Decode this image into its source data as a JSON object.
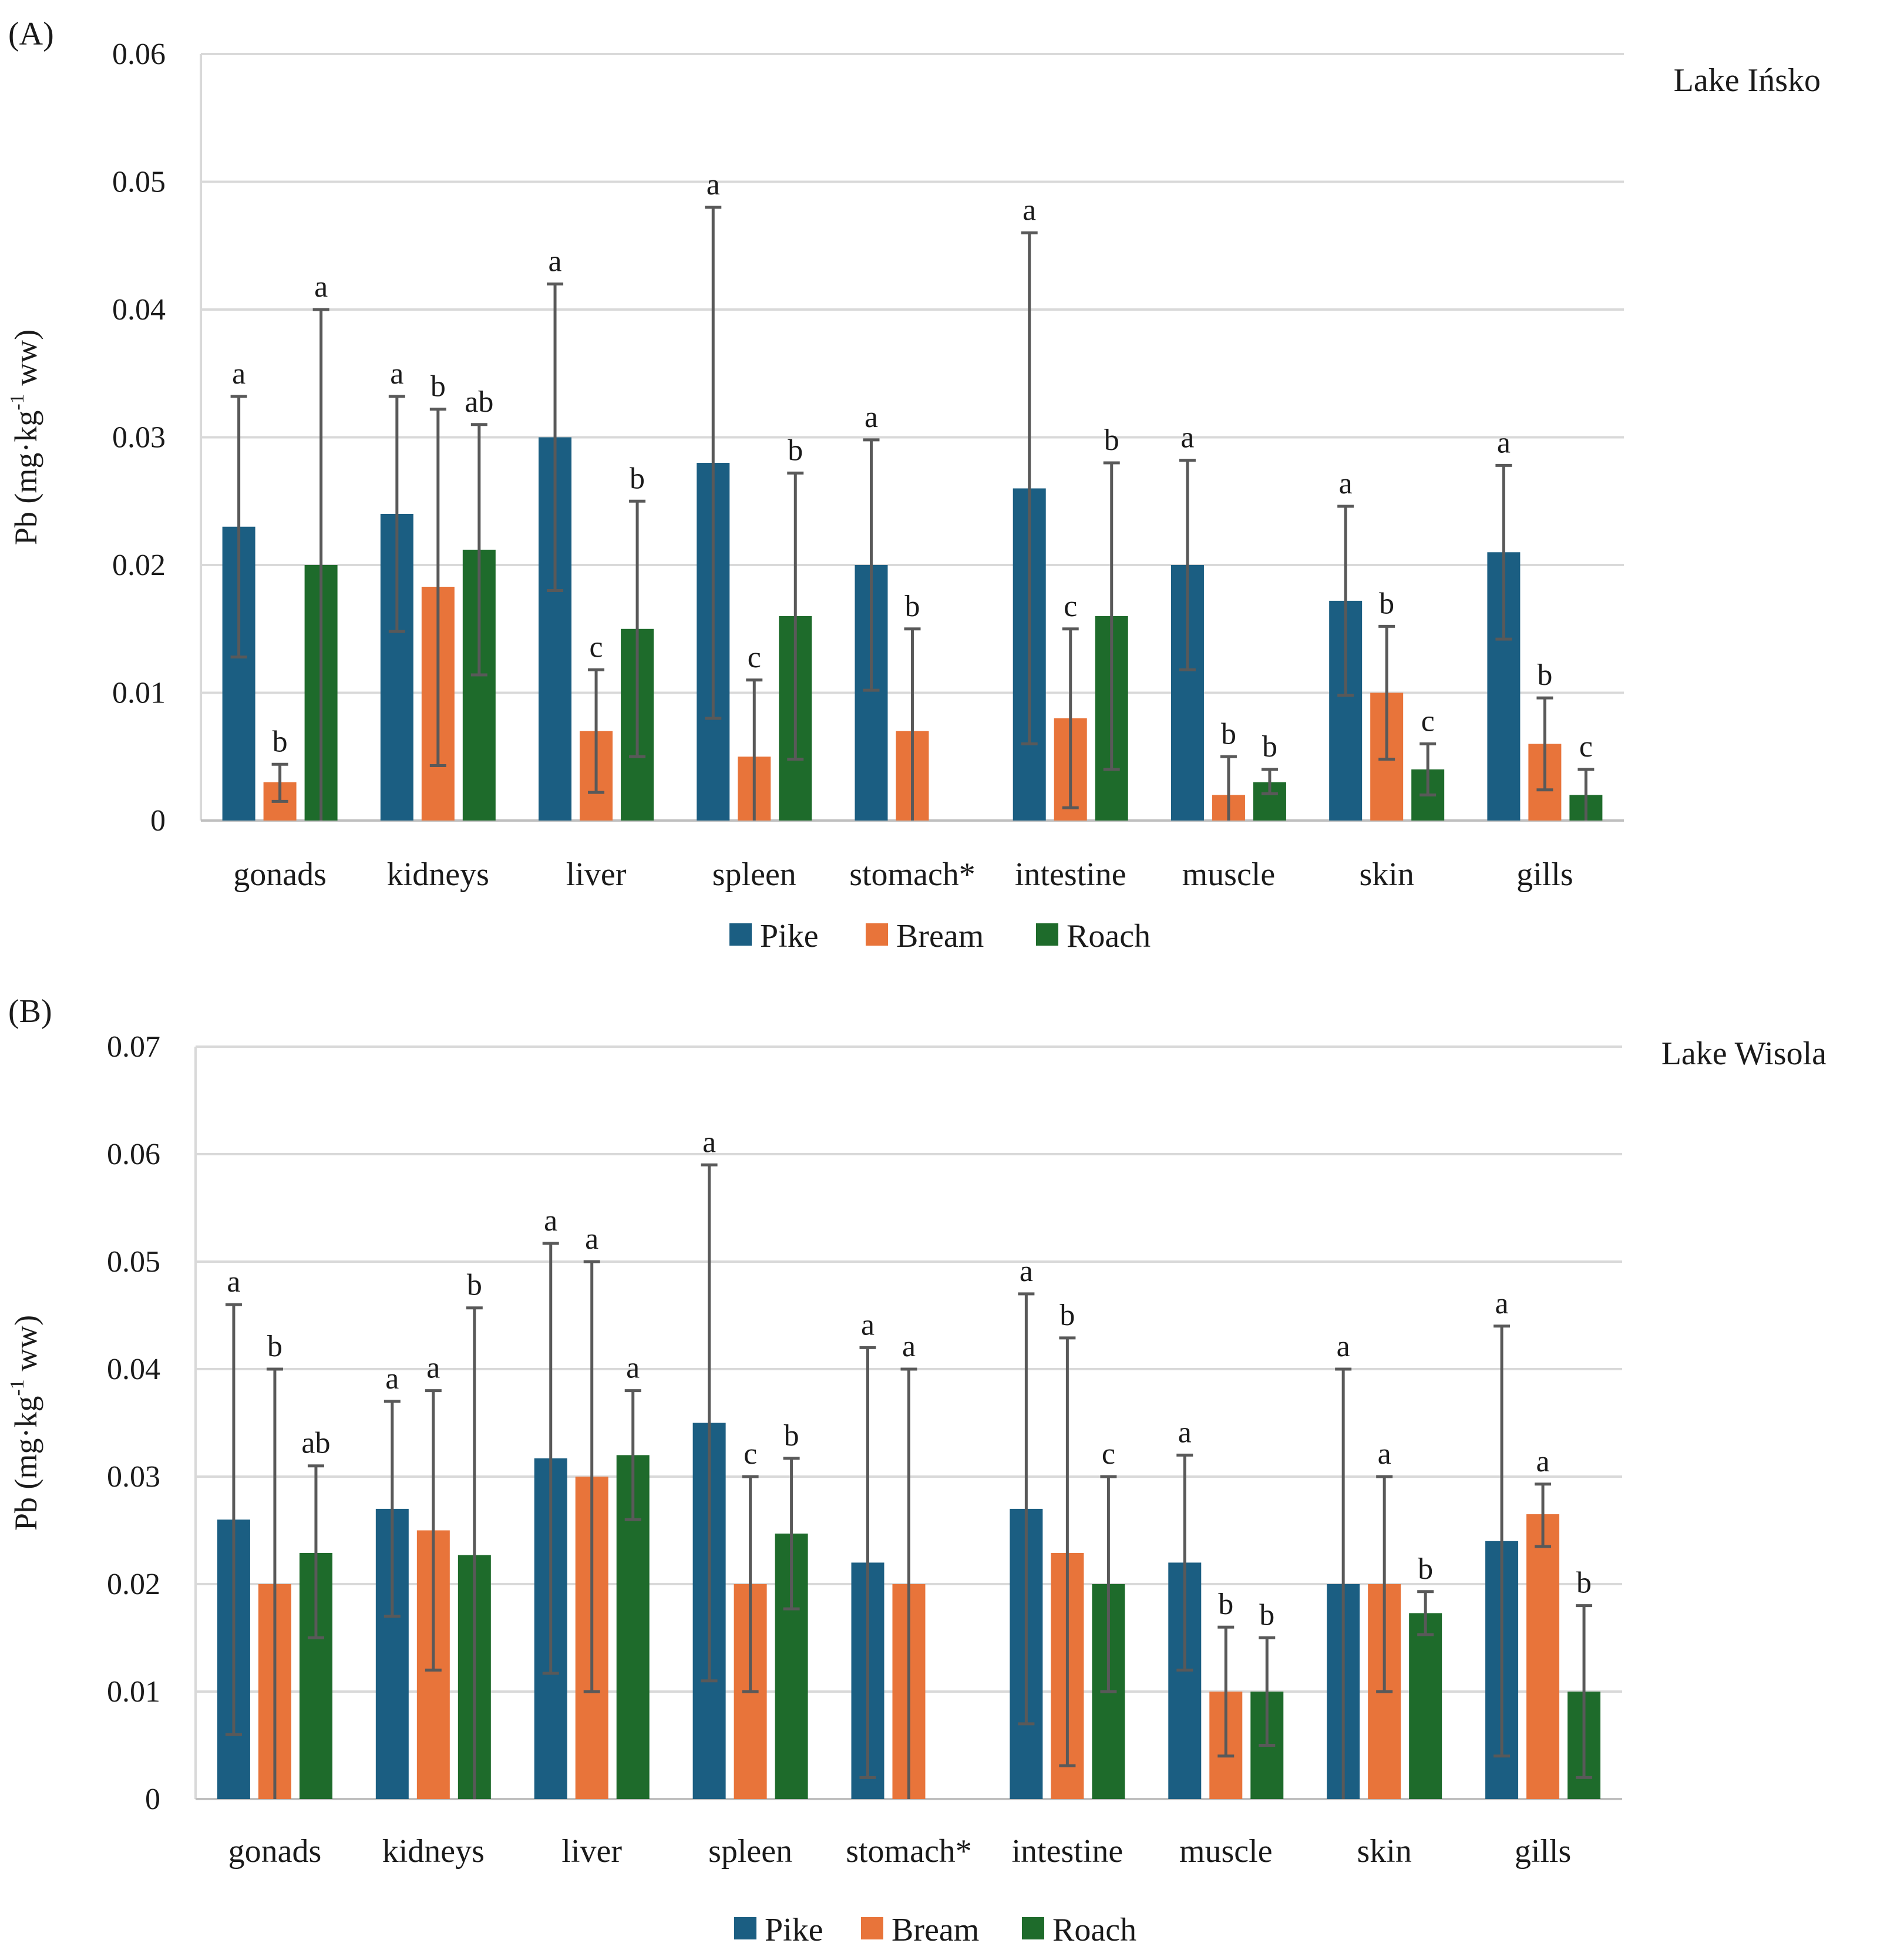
{
  "chart_data": [
    {
      "type": "bar",
      "panel_label": "(A)",
      "title": "Lake Ińsko",
      "ylabel_parts": [
        "Pb (mg·kg",
        "-1",
        " ww)"
      ],
      "ylim": [
        0,
        0.06
      ],
      "yticks": [
        0,
        0.01,
        0.02,
        0.03,
        0.04,
        0.05,
        0.06
      ],
      "ytick_labels": [
        "0",
        "0.01",
        "0.02",
        "0.03",
        "0.04",
        "0.05",
        "0.06"
      ],
      "categories": [
        "gonads",
        "kidneys",
        "liver",
        "spleen",
        "stomach*",
        "intestine",
        "muscle",
        "skin",
        "gills"
      ],
      "series": [
        {
          "name": "Pike",
          "color": "#1b5e82",
          "values": [
            0.023,
            0.024,
            0.03,
            0.028,
            0.02,
            0.026,
            0.02,
            0.0172,
            0.021
          ],
          "err_low": [
            0.0128,
            0.0148,
            0.018,
            0.008,
            0.0102,
            0.006,
            0.0118,
            0.0098,
            0.0142
          ],
          "err_high": [
            0.0332,
            0.0332,
            0.042,
            0.048,
            0.0298,
            0.046,
            0.0282,
            0.0246,
            0.0278
          ],
          "letters": [
            "a",
            "a",
            "a",
            "a",
            "a",
            "a",
            "a",
            "a",
            "a"
          ]
        },
        {
          "name": "Bream",
          "color": "#e8743a",
          "values": [
            0.003,
            0.0183,
            0.007,
            0.005,
            0.007,
            0.008,
            0.002,
            0.01,
            0.006
          ],
          "err_low": [
            0.0015,
            0.0043,
            0.0022,
            0.0,
            0.0,
            0.001,
            0.0,
            0.0048,
            0.0024
          ],
          "err_high": [
            0.0044,
            0.0322,
            0.0118,
            0.011,
            0.015,
            0.015,
            0.005,
            0.0152,
            0.0096
          ],
          "letters": [
            "b",
            "b",
            "c",
            "c",
            "b",
            "c",
            "b",
            "b",
            "b"
          ]
        },
        {
          "name": "Roach",
          "color": "#1e6b2b",
          "values": [
            0.02,
            0.0212,
            0.015,
            0.016,
            null,
            0.016,
            0.003,
            0.004,
            0.002
          ],
          "err_low": [
            0.0,
            0.0114,
            0.005,
            0.0048,
            null,
            0.004,
            0.0021,
            0.002,
            0.0
          ],
          "err_high": [
            0.04,
            0.031,
            0.025,
            0.0272,
            null,
            0.028,
            0.004,
            0.006,
            0.004
          ],
          "letters": [
            "a",
            "ab",
            "b",
            "b",
            "",
            "b",
            "b",
            "c",
            "c"
          ]
        }
      ],
      "legend": [
        "Pike",
        "Bream",
        "Roach"
      ],
      "grid": true
    },
    {
      "type": "bar",
      "panel_label": "(B)",
      "title": "Lake Wisola",
      "ylabel_parts": [
        "Pb (mg·kg",
        "-1",
        " ww)"
      ],
      "ylim": [
        0,
        0.07
      ],
      "yticks": [
        0,
        0.01,
        0.02,
        0.03,
        0.04,
        0.05,
        0.06,
        0.07
      ],
      "ytick_labels": [
        "0",
        "0.01",
        "0.02",
        "0.03",
        "0.04",
        "0.05",
        "0.06",
        "0.07"
      ],
      "categories": [
        "gonads",
        "kidneys",
        "liver",
        "spleen",
        "stomach*",
        "intestine",
        "muscle",
        "skin",
        "gills"
      ],
      "series": [
        {
          "name": "Pike",
          "color": "#1b5e82",
          "values": [
            0.026,
            0.027,
            0.0317,
            0.035,
            0.022,
            0.027,
            0.022,
            0.02,
            0.024
          ],
          "err_low": [
            0.006,
            0.017,
            0.0117,
            0.011,
            0.002,
            0.007,
            0.012,
            0.0,
            0.004
          ],
          "err_high": [
            0.046,
            0.037,
            0.0517,
            0.059,
            0.042,
            0.047,
            0.032,
            0.04,
            0.044
          ],
          "letters": [
            "a",
            "a",
            "a",
            "a",
            "a",
            "a",
            "a",
            "a",
            "a"
          ]
        },
        {
          "name": "Bream",
          "color": "#e8743a",
          "values": [
            0.02,
            0.025,
            0.03,
            0.02,
            0.02,
            0.0229,
            0.01,
            0.02,
            0.0265
          ],
          "err_low": [
            0.0,
            0.012,
            0.01,
            0.01,
            0.0,
            0.0031,
            0.004,
            0.01,
            0.0235
          ],
          "err_high": [
            0.04,
            0.038,
            0.05,
            0.03,
            0.04,
            0.0429,
            0.016,
            0.03,
            0.0293
          ],
          "letters": [
            "b",
            "a",
            "a",
            "c",
            "a",
            "b",
            "b",
            "a",
            "a"
          ]
        },
        {
          "name": "Roach",
          "color": "#1e6b2b",
          "values": [
            0.0229,
            0.0227,
            0.032,
            0.0247,
            null,
            0.02,
            0.01,
            0.0173,
            0.01
          ],
          "err_low": [
            0.015,
            0.0,
            0.026,
            0.0177,
            null,
            0.01,
            0.005,
            0.0153,
            0.002
          ],
          "err_high": [
            0.031,
            0.0457,
            0.038,
            0.0317,
            null,
            0.03,
            0.015,
            0.0193,
            0.018
          ],
          "letters": [
            "ab",
            "b",
            "a",
            "b",
            "",
            "c",
            "b",
            "b",
            "b"
          ]
        }
      ],
      "legend": [
        "Pike",
        "Bream",
        "Roach"
      ],
      "grid": true
    }
  ]
}
